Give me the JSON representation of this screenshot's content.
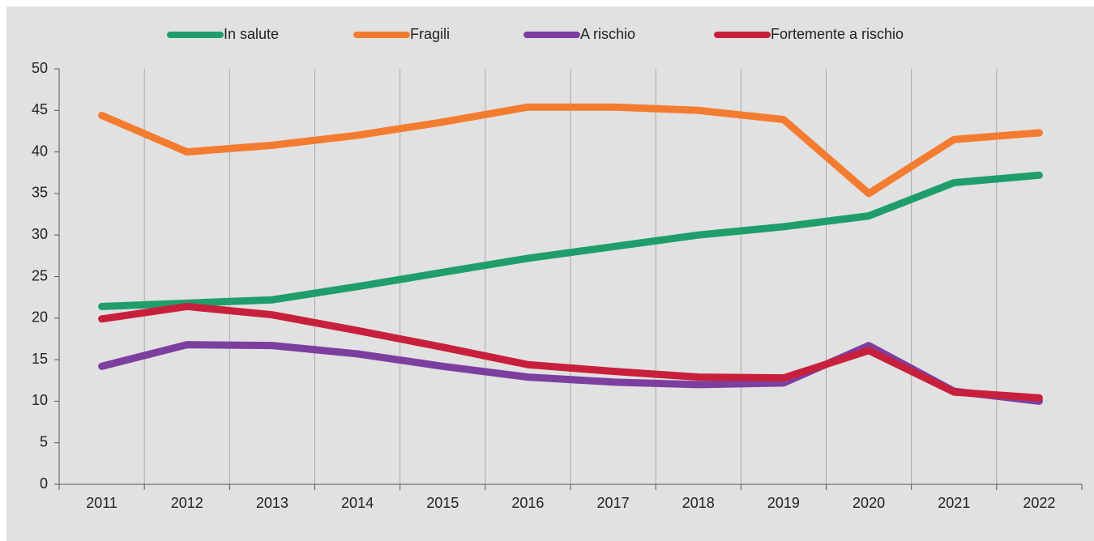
{
  "chart_data": {
    "type": "line",
    "categories": [
      "2011",
      "2012",
      "2013",
      "2014",
      "2015",
      "2016",
      "2017",
      "2018",
      "2019",
      "2020",
      "2021",
      "2022"
    ],
    "series": [
      {
        "name": "In salute",
        "color": "#1f9e6b",
        "values": [
          21.4,
          21.8,
          22.2,
          23.8,
          25.5,
          27.2,
          28.6,
          30.0,
          31.0,
          32.3,
          36.3,
          37.2
        ]
      },
      {
        "name": "Fragili",
        "color": "#f47c30",
        "values": [
          44.4,
          40.0,
          40.8,
          42.0,
          43.6,
          45.4,
          45.4,
          45.0,
          43.9,
          35.0,
          41.5,
          42.3
        ]
      },
      {
        "name": "A rischio",
        "color": "#7d3f9f",
        "values": [
          14.2,
          16.8,
          16.7,
          15.7,
          14.2,
          12.9,
          12.3,
          12.0,
          12.2,
          16.7,
          11.2,
          10.0
        ]
      },
      {
        "name": "Fortemente a rischio",
        "color": "#c8203c",
        "values": [
          19.9,
          21.4,
          20.4,
          18.5,
          16.5,
          14.4,
          13.6,
          12.9,
          12.8,
          16.1,
          11.1,
          10.4
        ]
      }
    ],
    "ylim": [
      0,
      50
    ],
    "yticks": [
      0,
      5,
      10,
      15,
      20,
      25,
      30,
      35,
      40,
      45,
      50
    ],
    "grid": true,
    "legend": "top"
  }
}
